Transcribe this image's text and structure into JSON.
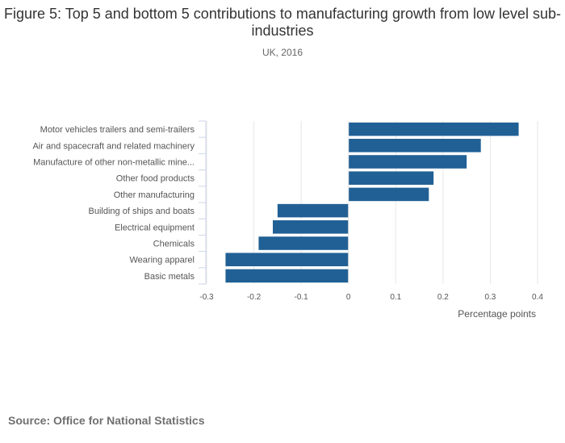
{
  "chart_data": {
    "type": "bar",
    "orientation": "horizontal",
    "title": "Figure 5: Top 5 and bottom 5 contributions to manufacturing growth from low level sub-industries",
    "subtitle": "UK, 2016",
    "xlabel": "Percentage points",
    "ylabel": "",
    "xlim": [
      -0.3,
      0.4
    ],
    "xticks": [
      "-0.3",
      "-0.2",
      "-0.1",
      "0",
      "0.1",
      "0.2",
      "0.3",
      "0.4"
    ],
    "xtick_values": [
      -0.3,
      -0.2,
      -0.1,
      0,
      0.1,
      0.2,
      0.3,
      0.4
    ],
    "categories": [
      "Motor vehicles trailers and semi-trailers",
      "Air and spacecraft and related machinery",
      "Manufacture of other non-metallic mine...",
      "Other food products",
      "Other manufacturing",
      "Building of ships and boats",
      "Electrical equipment",
      "Chemicals",
      "Wearing apparel",
      "Basic metals"
    ],
    "values": [
      0.36,
      0.28,
      0.25,
      0.18,
      0.17,
      -0.15,
      -0.16,
      -0.19,
      -0.26,
      -0.26
    ],
    "bar_color": "#206095",
    "grid": true
  },
  "source": "Source: Office for National Statistics"
}
